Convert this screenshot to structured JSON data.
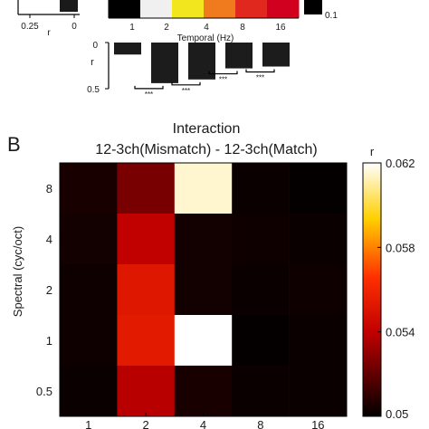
{
  "chart_data": [
    {
      "type": "heatmap",
      "panel": "top-cropped",
      "colorbar_ticks": [
        "0.1"
      ],
      "xlabel": "Temporal (Hz)",
      "x_ticks": [
        "1",
        "2",
        "4",
        "8",
        "16"
      ],
      "colors": [
        "#000000",
        "#f0f0f0",
        "#f2e61e",
        "#ef7b1e",
        "#e0281e",
        "#d0001e"
      ],
      "left_axis_ticks": [
        "0.25",
        "r",
        "0"
      ]
    },
    {
      "type": "bar",
      "panel": "top-bars",
      "ylabel": "r",
      "y_ticks": [
        "0",
        "0.5"
      ],
      "ylim": [
        0,
        0.5
      ],
      "values": [
        0.13,
        0.44,
        0.4,
        0.28,
        0.26
      ],
      "significance": [
        "***",
        "***",
        "***",
        "***"
      ]
    },
    {
      "type": "heatmap",
      "panel": "B",
      "panel_label": "B",
      "title": "Interaction",
      "subtitle": "12-3ch(Mismatch) - 12-3ch(Match)",
      "xlabel": "",
      "ylabel": "Spectral (cyc/oct)",
      "x_categories": [
        "1",
        "2",
        "4",
        "8",
        "16"
      ],
      "y_categories": [
        "8",
        "4",
        "2",
        "1",
        "0.5"
      ],
      "values": [
        [
          0.0505,
          0.0525,
          0.0615,
          0.0502,
          0.0501
        ],
        [
          0.0504,
          0.054,
          0.0504,
          0.0503,
          0.0502
        ],
        [
          0.0503,
          0.0552,
          0.0504,
          0.0502,
          0.0503
        ],
        [
          0.0503,
          0.0554,
          0.0622,
          0.0501,
          0.0502
        ],
        [
          0.0502,
          0.0538,
          0.0505,
          0.0502,
          0.0502
        ]
      ],
      "colorbar_label": "r",
      "colorbar_ticks": [
        "0.062",
        "0.058",
        "0.054",
        "0.05"
      ],
      "clim": [
        0.05,
        0.062
      ]
    }
  ]
}
